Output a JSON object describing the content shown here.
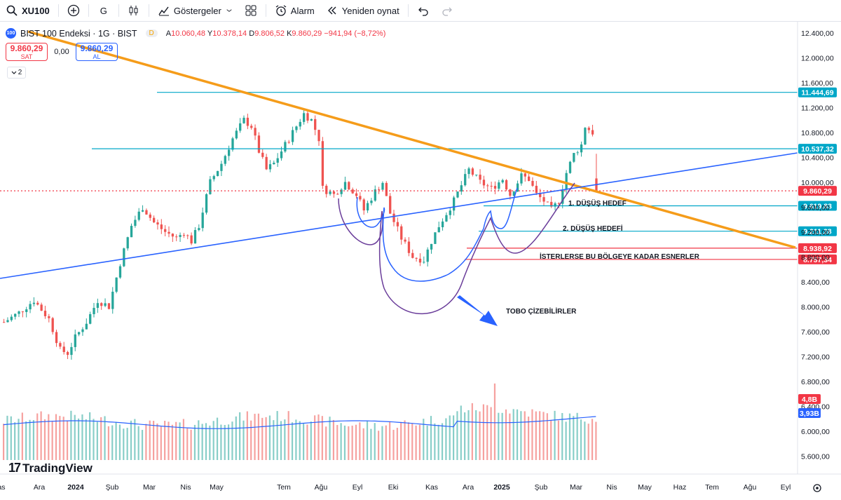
{
  "toolbar": {
    "symbol": "XU100",
    "interval": "G",
    "indicators_label": "Göstergeler",
    "alarm_label": "Alarm",
    "replay_label": "Yeniden oynat"
  },
  "legend": {
    "title": "BIST 100 Endeksi · 1G · BIST",
    "badge": "D",
    "o_label": "A",
    "o": "10.060,48",
    "h_label": "Y",
    "h": "10.378,14",
    "l_label": "D",
    "l": "9.806,52",
    "c_label": "K",
    "c": "9.860,29",
    "change": "−941,94 (−8,72%)",
    "collapse_count": "2"
  },
  "trade": {
    "sell_price": "9.860,29",
    "sell_label": "SAT",
    "spread": "0,00",
    "buy_price": "9.860,29",
    "buy_label": "AL"
  },
  "brand": "TradingView",
  "colors": {
    "up": "#26a69a",
    "down": "#ef5350",
    "trend_orange": "#f59c1a",
    "trend_blue": "#2962ff",
    "cyan_level": "#00a7c8",
    "red_level": "#f23645",
    "hand_drawn_purple": "#6a3d9a"
  },
  "chart_data": {
    "type": "candlestick",
    "y_ticks": [
      "12.400,00",
      "12.000,00",
      "11.600,00",
      "11.200,00",
      "10.800,00",
      "10.400,00",
      "10.000,00",
      "9.600,00",
      "9.200,00",
      "8.800,00",
      "8.400,00",
      "8.000,00",
      "7.600,00",
      "7.200,00",
      "6.800,00",
      "6.400,00",
      "6.000,00",
      "5.600,00"
    ],
    "x_labels": [
      "as",
      "Ara",
      "2024",
      "Şub",
      "Mar",
      "Nis",
      "May",
      "Tem",
      "Ağu",
      "Eyl",
      "Eki",
      "Kas",
      "Ara",
      "2025",
      "Şub",
      "Mar",
      "Nis",
      "May",
      "Haz",
      "Tem",
      "Ağu",
      "Eyl"
    ],
    "price_path": [
      [
        0,
        7750
      ],
      [
        4,
        7900
      ],
      [
        8,
        8100
      ],
      [
        12,
        7800
      ],
      [
        15,
        7300
      ],
      [
        17,
        7250
      ],
      [
        19,
        7500
      ],
      [
        22,
        7750
      ],
      [
        25,
        8100
      ],
      [
        28,
        8000
      ],
      [
        31,
        8700
      ],
      [
        34,
        9300
      ],
      [
        37,
        9600
      ],
      [
        40,
        9350
      ],
      [
        43,
        9200
      ],
      [
        46,
        9100
      ],
      [
        48,
        9200
      ],
      [
        50,
        9050
      ],
      [
        52,
        9300
      ],
      [
        55,
        10000
      ],
      [
        58,
        10300
      ],
      [
        61,
        10700
      ],
      [
        64,
        11000
      ],
      [
        66,
        10900
      ],
      [
        68,
        10500
      ],
      [
        70,
        10200
      ],
      [
        72,
        10300
      ],
      [
        75,
        10600
      ],
      [
        78,
        10900
      ],
      [
        80,
        11100
      ],
      [
        82,
        11000
      ],
      [
        84,
        10700
      ],
      [
        85,
        9900
      ],
      [
        88,
        9800
      ],
      [
        91,
        10000
      ],
      [
        94,
        9800
      ],
      [
        96,
        9550
      ],
      [
        99,
        9850
      ],
      [
        101,
        10000
      ],
      [
        103,
        9500
      ],
      [
        106,
        9100
      ],
      [
        109,
        8800
      ],
      [
        112,
        8750
      ],
      [
        114,
        9050
      ],
      [
        116,
        9300
      ],
      [
        118,
        9500
      ],
      [
        120,
        9700
      ],
      [
        122,
        9950
      ],
      [
        124,
        10200
      ],
      [
        127,
        10000
      ],
      [
        130,
        9900
      ],
      [
        133,
        10050
      ],
      [
        135,
        9800
      ],
      [
        138,
        10100
      ],
      [
        140,
        10050
      ],
      [
        142,
        9800
      ],
      [
        144,
        9700
      ],
      [
        146,
        9550
      ],
      [
        148,
        9700
      ],
      [
        150,
        10150
      ],
      [
        152,
        10450
      ],
      [
        154,
        10600
      ],
      [
        155,
        10900
      ],
      [
        157,
        10800
      ],
      [
        158,
        9860
      ]
    ],
    "volume_last": "4,8B",
    "volume_ma": "3,93B",
    "price_levels": [
      {
        "value": 11444.69,
        "label": "11.444,69",
        "color": "#00a7c8"
      },
      {
        "value": 10537.32,
        "label": "10.537,32",
        "color": "#00a7c8"
      },
      {
        "value": 9860.29,
        "label": "9.860,29",
        "color": "#f23645"
      },
      {
        "value": 9619.83,
        "label": "9.619,83",
        "color": "#00a7c8"
      },
      {
        "value": 9211.28,
        "label": "9.211,28",
        "color": "#00a7c8"
      },
      {
        "value": 8938.92,
        "label": "8.938,92",
        "color": "#f23645"
      },
      {
        "value": 8757.34,
        "label": "8.757,34",
        "color": "#f23645"
      }
    ],
    "annotations": [
      "1. DÜŞÜŞ HEDEF",
      "2. DÜŞÜŞ HEDEFİ",
      "İSTERLERSE  BU BÖLGEYE KADAR ESNERLER",
      "TOBO ÇİZEBİLİRLER"
    ]
  }
}
